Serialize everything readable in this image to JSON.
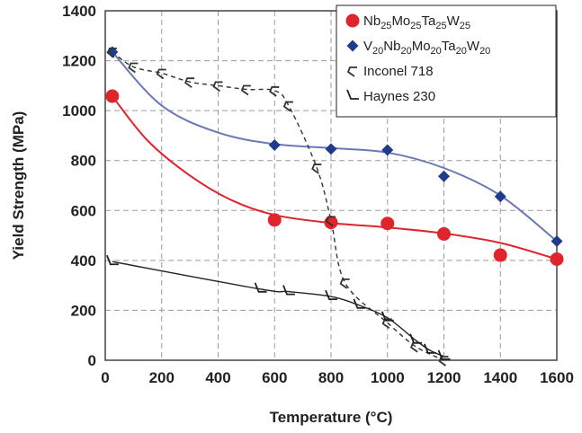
{
  "chart_data": {
    "type": "scatter",
    "xlabel": "Temperature (°C)",
    "ylabel": "Yield Strength (MPa)",
    "xlim": [
      0,
      1600
    ],
    "ylim": [
      0,
      1400
    ],
    "xticks": [
      "0",
      "200",
      "400",
      "600",
      "800",
      "1000",
      "1200",
      "1400",
      "1600"
    ],
    "yticks": [
      "0",
      "200",
      "400",
      "600",
      "800",
      "1000",
      "1200",
      "1400"
    ],
    "grid": true,
    "legend_position": "top-right",
    "series": [
      {
        "name": "Nb25Mo25Ta25W25",
        "legend_parts": [
          [
            "Nb",
            ""
          ],
          [
            "25",
            "sub"
          ],
          [
            "Mo",
            ""
          ],
          [
            "25",
            "sub"
          ],
          [
            "Ta",
            ""
          ],
          [
            "25",
            "sub"
          ],
          [
            "W",
            ""
          ],
          [
            "25",
            "sub"
          ]
        ],
        "marker": "circle",
        "color": "#e0242c",
        "points": [
          [
            25,
            1058
          ],
          [
            600,
            562
          ],
          [
            800,
            552
          ],
          [
            1000,
            548
          ],
          [
            1200,
            506
          ],
          [
            1400,
            421
          ],
          [
            1600,
            405
          ]
        ],
        "fit": [
          [
            25,
            1058
          ],
          [
            150,
            880
          ],
          [
            300,
            740
          ],
          [
            450,
            640
          ],
          [
            600,
            582
          ],
          [
            800,
            550
          ],
          [
            1000,
            532
          ],
          [
            1200,
            508
          ],
          [
            1400,
            470
          ],
          [
            1600,
            405
          ]
        ],
        "fit_color": "#e0242c"
      },
      {
        "name": "V20Nb20Mo20Ta20W20",
        "legend_parts": [
          [
            "V",
            ""
          ],
          [
            "20",
            "sub"
          ],
          [
            "Nb",
            ""
          ],
          [
            "20",
            "sub"
          ],
          [
            "Mo",
            ""
          ],
          [
            "20",
            "sub"
          ],
          [
            "Ta",
            ""
          ],
          [
            "20",
            "sub"
          ],
          [
            "W",
            ""
          ],
          [
            "20",
            "sub"
          ]
        ],
        "marker": "diamond",
        "color": "#1f3b8c",
        "points": [
          [
            25,
            1235
          ],
          [
            600,
            862
          ],
          [
            800,
            846
          ],
          [
            1000,
            842
          ],
          [
            1200,
            737
          ],
          [
            1400,
            656
          ],
          [
            1600,
            477
          ]
        ],
        "fit": [
          [
            25,
            1235
          ],
          [
            200,
            1020
          ],
          [
            400,
            912
          ],
          [
            600,
            866
          ],
          [
            800,
            850
          ],
          [
            1000,
            832
          ],
          [
            1200,
            770
          ],
          [
            1400,
            660
          ],
          [
            1600,
            477
          ]
        ],
        "fit_color": "#6b78b8"
      },
      {
        "name": "Inconel 718",
        "marker": "hook",
        "color": "#333333",
        "points": [
          [
            25,
            1235
          ],
          [
            100,
            1175
          ],
          [
            200,
            1150
          ],
          [
            300,
            1115
          ],
          [
            400,
            1100
          ],
          [
            500,
            1085
          ],
          [
            600,
            1080
          ],
          [
            650,
            1020
          ],
          [
            750,
            770
          ],
          [
            800,
            560
          ],
          [
            850,
            310
          ],
          [
            1000,
            150
          ],
          [
            1100,
            55
          ],
          [
            1200,
            0
          ]
        ],
        "line_style": "dashed"
      },
      {
        "name": "Haynes 230",
        "marker": "check",
        "color": "#222222",
        "points": [
          [
            25,
            395
          ],
          [
            550,
            285
          ],
          [
            650,
            275
          ],
          [
            800,
            255
          ],
          [
            900,
            220
          ],
          [
            1000,
            170
          ],
          [
            1100,
            80
          ],
          [
            1150,
            40
          ],
          [
            1200,
            15
          ]
        ],
        "line_style": "solid"
      }
    ]
  }
}
